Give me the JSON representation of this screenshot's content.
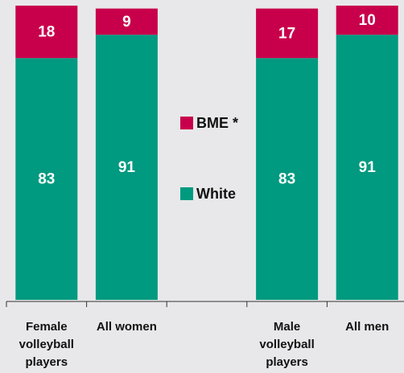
{
  "chart_data": {
    "type": "stacked_bar",
    "categories": [
      "Female volleyball players",
      "All women",
      null,
      "Male volleyball players",
      "All men"
    ],
    "series": [
      {
        "name": "White",
        "color": "#009a80",
        "values": [
          83,
          91,
          null,
          83,
          91
        ]
      },
      {
        "name": "BME *",
        "color": "#c8004b",
        "values": [
          18,
          9,
          null,
          17,
          10
        ]
      }
    ],
    "ylim": [
      0,
      101
    ]
  }
}
